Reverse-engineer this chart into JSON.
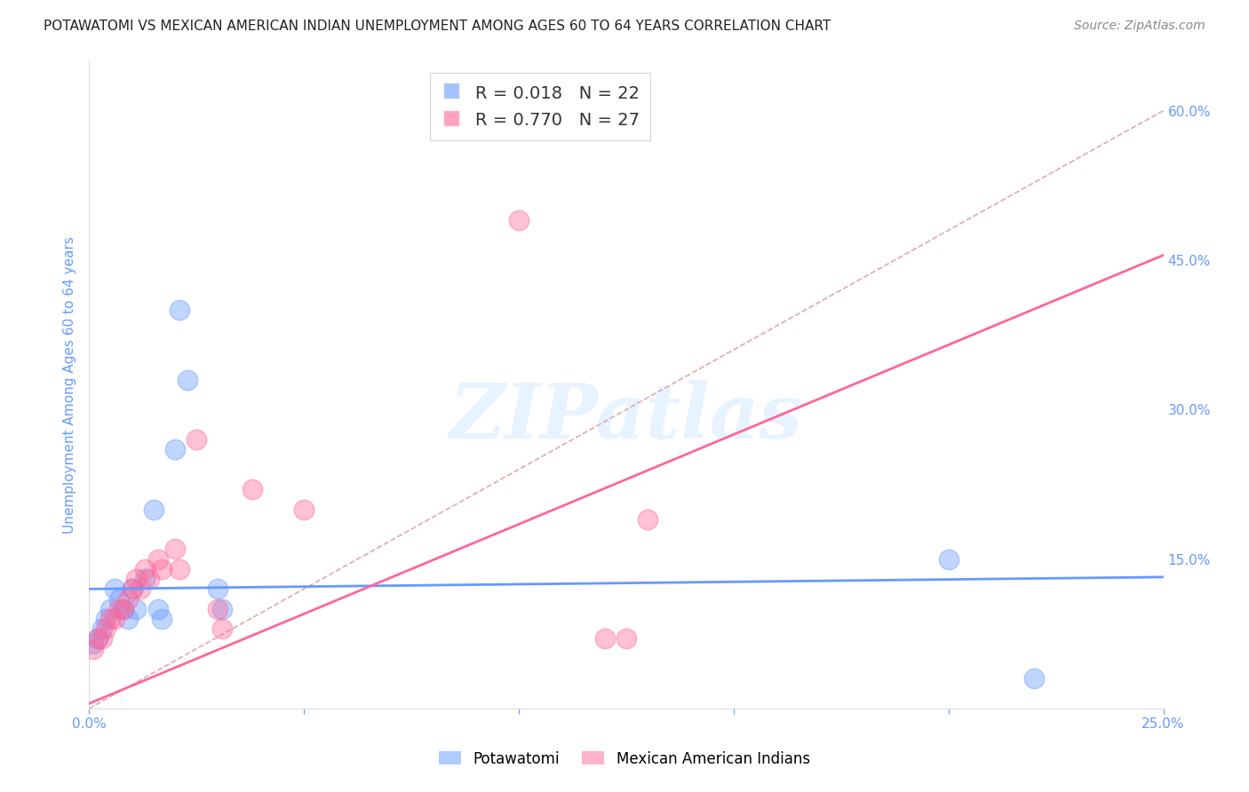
{
  "title": "POTAWATOMI VS MEXICAN AMERICAN INDIAN UNEMPLOYMENT AMONG AGES 60 TO 64 YEARS CORRELATION CHART",
  "source": "Source: ZipAtlas.com",
  "ylabel": "Unemployment Among Ages 60 to 64 years",
  "xlim": [
    0.0,
    0.25
  ],
  "ylim": [
    0.0,
    0.65
  ],
  "x_ticks": [
    0.0,
    0.05,
    0.1,
    0.15,
    0.2,
    0.25
  ],
  "y_ticks_right": [
    0.15,
    0.3,
    0.45,
    0.6
  ],
  "blue_color": "#6699ff",
  "pink_color": "#ff6699",
  "legend_r_blue": "R = 0.018",
  "legend_n_blue": "N = 22",
  "legend_r_pink": "R = 0.770",
  "legend_n_pink": "N = 27",
  "blue_scatter": [
    [
      0.002,
      0.07
    ],
    [
      0.003,
      0.08
    ],
    [
      0.004,
      0.09
    ],
    [
      0.005,
      0.1
    ],
    [
      0.006,
      0.12
    ],
    [
      0.007,
      0.11
    ],
    [
      0.008,
      0.1
    ],
    [
      0.009,
      0.09
    ],
    [
      0.01,
      0.12
    ],
    [
      0.011,
      0.1
    ],
    [
      0.013,
      0.13
    ],
    [
      0.015,
      0.2
    ],
    [
      0.016,
      0.1
    ],
    [
      0.017,
      0.09
    ],
    [
      0.02,
      0.26
    ],
    [
      0.021,
      0.4
    ],
    [
      0.023,
      0.33
    ],
    [
      0.03,
      0.12
    ],
    [
      0.031,
      0.1
    ],
    [
      0.2,
      0.15
    ],
    [
      0.22,
      0.03
    ],
    [
      0.001,
      0.065
    ]
  ],
  "pink_scatter": [
    [
      0.001,
      0.06
    ],
    [
      0.002,
      0.07
    ],
    [
      0.003,
      0.07
    ],
    [
      0.004,
      0.08
    ],
    [
      0.005,
      0.09
    ],
    [
      0.006,
      0.09
    ],
    [
      0.007,
      0.1
    ],
    [
      0.008,
      0.1
    ],
    [
      0.009,
      0.11
    ],
    [
      0.01,
      0.12
    ],
    [
      0.011,
      0.13
    ],
    [
      0.012,
      0.12
    ],
    [
      0.013,
      0.14
    ],
    [
      0.014,
      0.13
    ],
    [
      0.016,
      0.15
    ],
    [
      0.017,
      0.14
    ],
    [
      0.02,
      0.16
    ],
    [
      0.021,
      0.14
    ],
    [
      0.025,
      0.27
    ],
    [
      0.03,
      0.1
    ],
    [
      0.031,
      0.08
    ],
    [
      0.038,
      0.22
    ],
    [
      0.05,
      0.2
    ],
    [
      0.1,
      0.49
    ],
    [
      0.12,
      0.07
    ],
    [
      0.125,
      0.07
    ],
    [
      0.13,
      0.19
    ]
  ],
  "blue_line_x": [
    0.0,
    0.25
  ],
  "blue_line_y": [
    0.12,
    0.132
  ],
  "pink_line_x": [
    0.0,
    0.25
  ],
  "pink_line_y": [
    0.005,
    0.455
  ],
  "ref_line_x": [
    0.0,
    0.25
  ],
  "ref_line_y": [
    0.0,
    0.6
  ],
  "watermark": "ZIPatlas",
  "bg_color": "#ffffff",
  "grid_color": "#dddddd",
  "title_color": "#222222",
  "axis_label_color": "#6699ff",
  "ref_line_color": "#ddaaaa",
  "grid_line_style": "--"
}
